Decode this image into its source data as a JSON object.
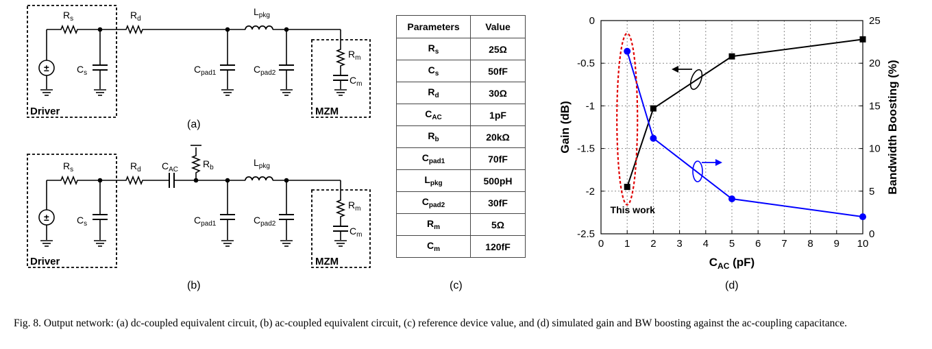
{
  "panel_labels": {
    "a": "(a)",
    "b": "(b)",
    "c": "(c)",
    "d": "(d)"
  },
  "circuit": {
    "driver": "Driver",
    "mzm": "MZM",
    "source_symbol": "±",
    "Rs": {
      "main": "R",
      "sub": "s"
    },
    "Cs": {
      "main": "C",
      "sub": "s"
    },
    "Rd": {
      "main": "R",
      "sub": "d"
    },
    "Lpkg": {
      "main": "L",
      "sub": "pkg"
    },
    "Cpad1": {
      "main": "C",
      "sub": "pad1"
    },
    "Cpad2": {
      "main": "C",
      "sub": "pad2"
    },
    "Rm": {
      "main": "R",
      "sub": "m"
    },
    "Cm": {
      "main": "C",
      "sub": "m"
    },
    "CAC": {
      "main": "C",
      "sub": "AC"
    },
    "Rb": {
      "main": "R",
      "sub": "b"
    }
  },
  "table": {
    "header": [
      "Parameters",
      "Value"
    ],
    "rows": [
      {
        "main": "R",
        "sub": "s",
        "value": "25Ω"
      },
      {
        "main": "C",
        "sub": "s",
        "value": "50fF"
      },
      {
        "main": "R",
        "sub": "d",
        "value": "30Ω"
      },
      {
        "main": "C",
        "sub": "AC",
        "value": "1pF"
      },
      {
        "main": "R",
        "sub": "b",
        "value": "20kΩ"
      },
      {
        "main": "C",
        "sub": "pad1",
        "value": "70fF"
      },
      {
        "main": "L",
        "sub": "pkg",
        "value": "500pH"
      },
      {
        "main": "C",
        "sub": "pad2",
        "value": "30fF"
      },
      {
        "main": "R",
        "sub": "m",
        "value": "5Ω"
      },
      {
        "main": "C",
        "sub": "m",
        "value": "120fF"
      }
    ]
  },
  "chart_data": {
    "type": "line",
    "xlabel": "C",
    "xlabel_sub": "AC",
    "xlabel_unit": " (pF)",
    "ylabel_left": "Gain (dB)",
    "ylabel_right": "Bandwidth Boosting (%)",
    "xlim": [
      0,
      10
    ],
    "ylim_left": [
      -2.5,
      0
    ],
    "ylim_right": [
      0,
      25
    ],
    "xticks": [
      0,
      1,
      2,
      3,
      4,
      5,
      6,
      7,
      8,
      9,
      10
    ],
    "yticks_left": [
      "0",
      "-0.5",
      "-1",
      "-1.5",
      "-2",
      "-2.5"
    ],
    "yticks_right": [
      "25",
      "20",
      "15",
      "10",
      "5",
      "0"
    ],
    "grid": true,
    "annotation": "This work",
    "series": [
      {
        "axis": "left",
        "color": "#000000",
        "marker": "square",
        "x": [
          1,
          2,
          5,
          10
        ],
        "y": [
          -1.95,
          -1.03,
          -0.42,
          -0.22
        ]
      },
      {
        "axis": "right",
        "color": "#0000ff",
        "marker": "circle",
        "x": [
          1,
          2,
          5,
          10
        ],
        "y": [
          21.4,
          11.2,
          4.1,
          2.0
        ]
      }
    ]
  },
  "caption": "Fig. 8.    Output network: (a) dc-coupled equivalent circuit, (b) ac-coupled equivalent circuit, (c) reference device value, and (d) simulated gain and BW boosting against the ac-coupling capacitance."
}
